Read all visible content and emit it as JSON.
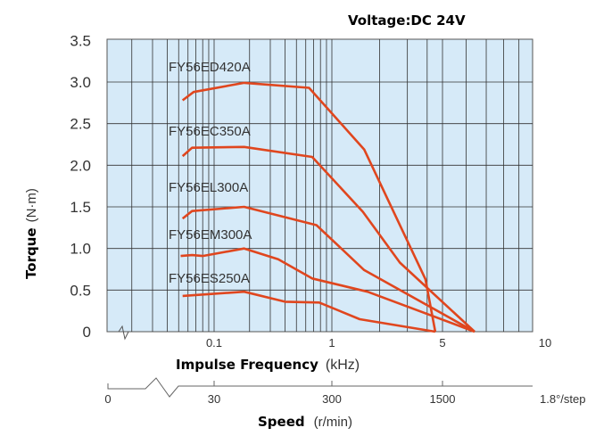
{
  "chart_data": {
    "type": "line",
    "title": "Voltage:DC 24V",
    "xlabel": "Impulse Frequency",
    "xlabel_unit": "(kHz)",
    "ylabel": "Torque",
    "ylabel_unit": "(N·m)",
    "x_scale": "log",
    "xlim": [
      0.02,
      10
    ],
    "ylim": [
      0,
      3.5
    ],
    "grid": true,
    "y_ticks": [
      "0",
      "0.5",
      "1.0",
      "1.5",
      "2.0",
      "2.5",
      "3.0",
      "3.5"
    ],
    "x_ticks": [
      {
        "value": 0.1,
        "label": "0.1"
      },
      {
        "value": 1,
        "label": "1"
      },
      {
        "value": 5,
        "label": "5"
      },
      {
        "value": 10,
        "label": "10"
      }
    ],
    "speed_axis": {
      "label": "Speed",
      "unit": "(r/min)",
      "ticks": [
        {
          "label": "0"
        },
        {
          "value": 0.1,
          "label": "30"
        },
        {
          "value": 1,
          "label": "300"
        },
        {
          "value": 5,
          "label": "1500"
        }
      ],
      "step_note": "1.8°/step"
    },
    "series": [
      {
        "name": "FY56ED420A",
        "x": [
          0.054,
          0.067,
          0.18,
          0.64,
          1.6,
          3.9,
          4.5
        ],
        "y": [
          2.78,
          2.88,
          2.99,
          2.93,
          2.19,
          0.63,
          0
        ]
      },
      {
        "name": "FY56EC350A",
        "x": [
          0.054,
          0.065,
          0.18,
          0.68,
          1.57,
          2.69,
          6.4
        ],
        "y": [
          2.11,
          2.21,
          2.22,
          2.1,
          1.44,
          0.83,
          0
        ]
      },
      {
        "name": "FY56EL300A",
        "x": [
          0.054,
          0.065,
          0.18,
          0.74,
          1.6,
          6.4
        ],
        "y": [
          1.36,
          1.45,
          1.5,
          1.28,
          0.74,
          0
        ]
      },
      {
        "name": "FY56EM300A",
        "x": [
          0.052,
          0.065,
          0.08,
          0.18,
          0.35,
          0.68,
          1.68,
          6.4
        ],
        "y": [
          0.91,
          0.92,
          0.91,
          1.0,
          0.87,
          0.64,
          0.48,
          0
        ]
      },
      {
        "name": "FY56ES250A",
        "x": [
          0.054,
          0.18,
          0.4,
          0.78,
          1.5,
          4.5
        ],
        "y": [
          0.43,
          0.48,
          0.36,
          0.35,
          0.15,
          0
        ]
      }
    ],
    "colors": {
      "line": "#e0461e",
      "plot_bg": "#d6eaf8",
      "grid": "#333333"
    }
  }
}
